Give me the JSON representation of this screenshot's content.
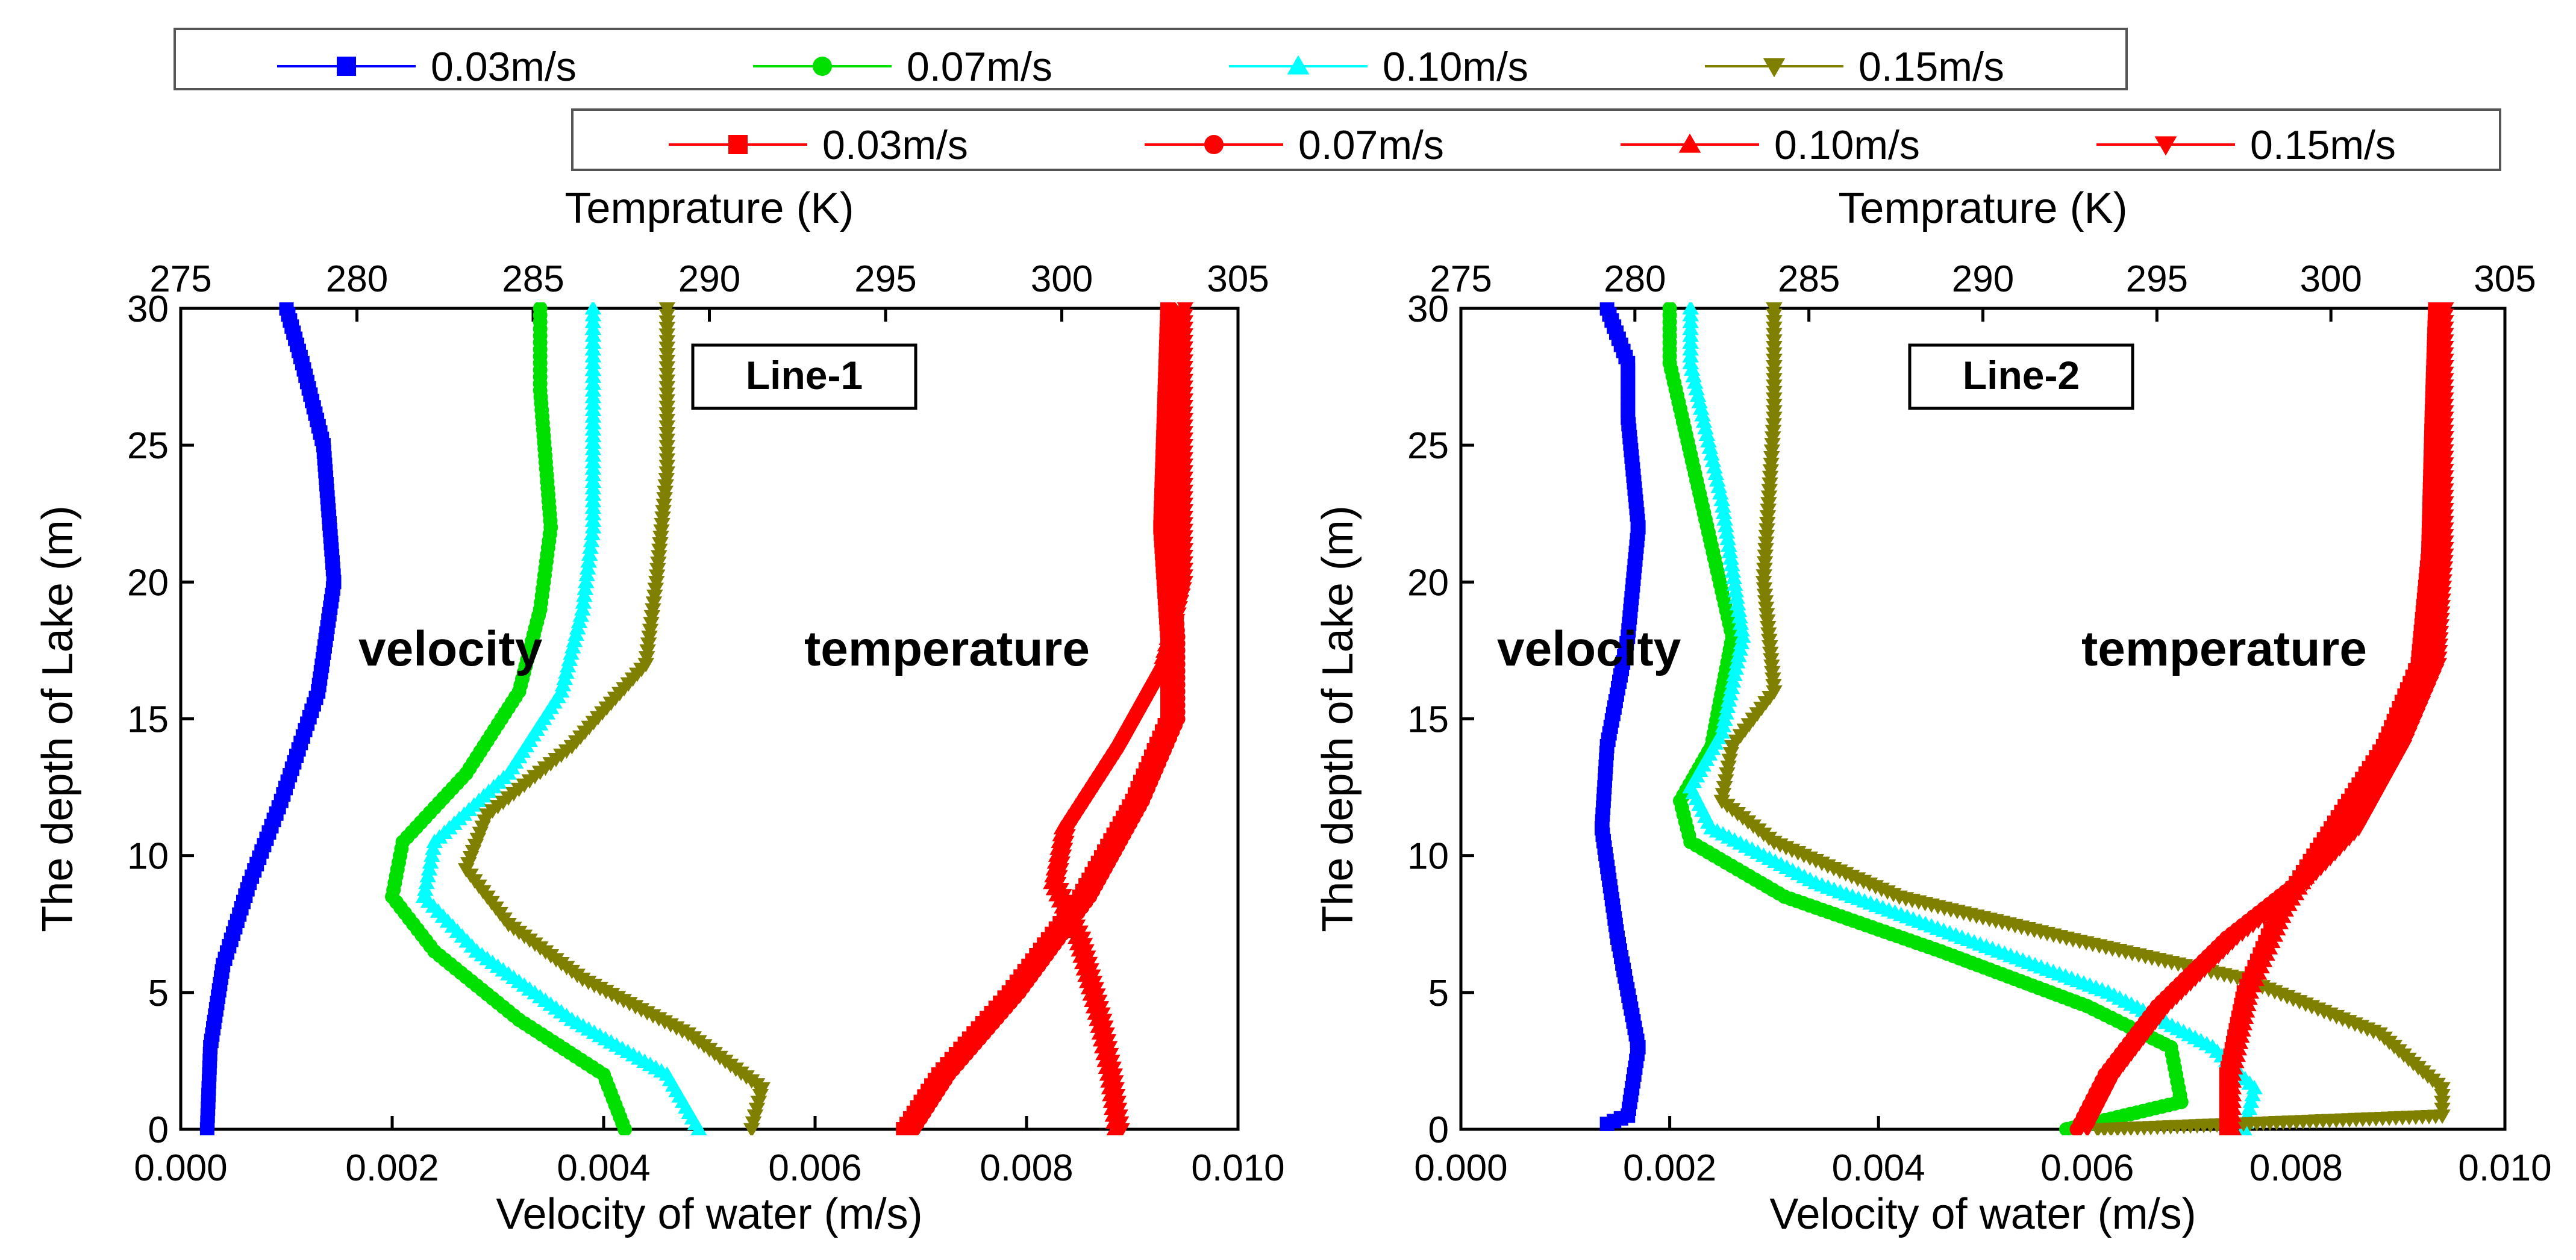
{
  "legends": {
    "velocity_legend": [
      {
        "label": "0.03m/s",
        "color": "#0000ff",
        "marker": "square"
      },
      {
        "label": "0.07m/s",
        "color": "#00e000",
        "marker": "circle"
      },
      {
        "label": "0.10m/s",
        "color": "#00ffff",
        "marker": "triangle-up"
      },
      {
        "label": "0.15m/s",
        "color": "#808000",
        "marker": "triangle-down"
      }
    ],
    "temperature_legend": [
      {
        "label": "0.03m/s",
        "color": "#ff0000",
        "marker": "square"
      },
      {
        "label": "0.07m/s",
        "color": "#ff0000",
        "marker": "circle"
      },
      {
        "label": "0.10m/s",
        "color": "#ff0000",
        "marker": "triangle-up"
      },
      {
        "label": "0.15m/s",
        "color": "#ff0000",
        "marker": "triangle-down"
      }
    ]
  },
  "chart_data": [
    {
      "type": "line",
      "panel_label": "Line-1",
      "xlabel": "Velocity of water (m/s)",
      "ylabel": "The depth of Lake (m)",
      "x2label": "Temprature (K)",
      "xlim": [
        0.0,
        0.01
      ],
      "x2lim": [
        275,
        305
      ],
      "ylim": [
        0,
        30
      ],
      "xticks": [
        "0.000",
        "0.002",
        "0.004",
        "0.006",
        "0.008",
        "0.010"
      ],
      "x2ticks": [
        "275",
        "280",
        "285",
        "290",
        "295",
        "300",
        "305"
      ],
      "yticks": [
        "0",
        "5",
        "10",
        "15",
        "20",
        "25",
        "30"
      ],
      "annotations": [
        "velocity",
        "temperature"
      ],
      "velocity_series": [
        {
          "name": "0.03m/s",
          "color": "#0000ff",
          "marker": "square",
          "points": [
            [
              0.00025,
              0
            ],
            [
              0.00028,
              3
            ],
            [
              0.0004,
              6
            ],
            [
              0.00065,
              9
            ],
            [
              0.00095,
              12
            ],
            [
              0.0013,
              16
            ],
            [
              0.00145,
              20
            ],
            [
              0.00135,
              25
            ],
            [
              0.00115,
              28
            ],
            [
              0.001,
              30
            ]
          ]
        },
        {
          "name": "0.07m/s",
          "color": "#00e000",
          "marker": "circle",
          "points": [
            [
              0.0042,
              0
            ],
            [
              0.004,
              2
            ],
            [
              0.0032,
              4
            ],
            [
              0.0024,
              6.5
            ],
            [
              0.002,
              8.5
            ],
            [
              0.0021,
              10.5
            ],
            [
              0.0027,
              13
            ],
            [
              0.0032,
              16
            ],
            [
              0.0034,
              19
            ],
            [
              0.0035,
              22
            ],
            [
              0.0034,
              27
            ],
            [
              0.0034,
              30
            ]
          ]
        },
        {
          "name": "0.10m/s",
          "color": "#00ffff",
          "marker": "triangle-up",
          "points": [
            [
              0.0049,
              0
            ],
            [
              0.0046,
              2
            ],
            [
              0.0037,
              4
            ],
            [
              0.0028,
              6.5
            ],
            [
              0.0023,
              8.5
            ],
            [
              0.0024,
              10.5
            ],
            [
              0.0031,
              13
            ],
            [
              0.0036,
              16
            ],
            [
              0.0038,
              19
            ],
            [
              0.0039,
              22
            ],
            [
              0.0039,
              27
            ],
            [
              0.0039,
              30
            ]
          ]
        },
        {
          "name": "0.15m/s",
          "color": "#808000",
          "marker": "triangle-down",
          "points": [
            [
              0.0054,
              0
            ],
            [
              0.0055,
              1.5
            ],
            [
              0.0048,
              3.5
            ],
            [
              0.0038,
              5.5
            ],
            [
              0.0031,
              7.5
            ],
            [
              0.0027,
              9.5
            ],
            [
              0.0029,
              11.5
            ],
            [
              0.0037,
              14
            ],
            [
              0.0044,
              17
            ],
            [
              0.0045,
              20
            ],
            [
              0.0046,
              24
            ],
            [
              0.0046,
              30
            ]
          ]
        }
      ],
      "temperature_series": [
        {
          "name": "0.03m/s",
          "color": "#ff0000",
          "marker": "square",
          "points": [
            [
              295.5,
              0
            ],
            [
              296.5,
              2
            ],
            [
              298.5,
              5
            ],
            [
              300.5,
              8.5
            ],
            [
              302.0,
              12
            ],
            [
              303.0,
              15
            ],
            [
              303.0,
              18
            ],
            [
              302.8,
              22
            ],
            [
              302.9,
              26
            ],
            [
              303.0,
              30
            ]
          ]
        },
        {
          "name": "0.07m/s",
          "color": "#ff0000",
          "marker": "circle",
          "points": [
            [
              295.8,
              0
            ],
            [
              296.8,
              2
            ],
            [
              298.8,
              5
            ],
            [
              300.8,
              8.5
            ],
            [
              302.3,
              12
            ],
            [
              303.3,
              15
            ],
            [
              303.3,
              18
            ],
            [
              303.1,
              22
            ],
            [
              303.1,
              26
            ],
            [
              303.1,
              30
            ]
          ]
        },
        {
          "name": "0.10m/s",
          "color": "#ff0000",
          "marker": "triangle-up",
          "points": [
            [
              301.5,
              0
            ],
            [
              301.3,
              2
            ],
            [
              301.0,
              4
            ],
            [
              300.4,
              7
            ],
            [
              299.7,
              9
            ],
            [
              300.0,
              11
            ],
            [
              301.5,
              14
            ],
            [
              302.8,
              17
            ],
            [
              303.4,
              20
            ],
            [
              303.4,
              25
            ],
            [
              303.4,
              30
            ]
          ]
        },
        {
          "name": "0.15m/s",
          "color": "#ff0000",
          "marker": "triangle-down",
          "points": [
            [
              301.7,
              0
            ],
            [
              301.5,
              2
            ],
            [
              301.2,
              4
            ],
            [
              300.6,
              7
            ],
            [
              299.9,
              9
            ],
            [
              300.2,
              11
            ],
            [
              301.7,
              14
            ],
            [
              303.0,
              17
            ],
            [
              303.5,
              20
            ],
            [
              303.5,
              25
            ],
            [
              303.5,
              30
            ]
          ]
        }
      ]
    },
    {
      "type": "line",
      "panel_label": "Line-2",
      "xlabel": "Velocity of water (m/s)",
      "ylabel": "The depth of Lake (m)",
      "x2label": "Temprature (K)",
      "xlim": [
        0.0,
        0.01
      ],
      "x2lim": [
        275,
        305
      ],
      "ylim": [
        0,
        30
      ],
      "xticks": [
        "0.000",
        "0.002",
        "0.004",
        "0.006",
        "0.008",
        "0.010"
      ],
      "x2ticks": [
        "275",
        "280",
        "285",
        "290",
        "295",
        "300",
        "305"
      ],
      "yticks": [
        "0",
        "5",
        "10",
        "15",
        "20",
        "25",
        "30"
      ],
      "annotations": [
        "velocity",
        "temperature"
      ],
      "velocity_series": [
        {
          "name": "0.03m/s",
          "color": "#0000ff",
          "marker": "square",
          "points": [
            [
              0.0014,
              0.2
            ],
            [
              0.0016,
              0.5
            ],
            [
              0.0017,
              3
            ],
            [
              0.0015,
              7
            ],
            [
              0.00135,
              11
            ],
            [
              0.0014,
              14
            ],
            [
              0.0016,
              18
            ],
            [
              0.0017,
              22
            ],
            [
              0.0016,
              26
            ],
            [
              0.0016,
              28
            ],
            [
              0.0014,
              30
            ]
          ]
        },
        {
          "name": "0.07m/s",
          "color": "#00e000",
          "marker": "circle",
          "points": [
            [
              0.0058,
              0
            ],
            [
              0.0069,
              1
            ],
            [
              0.0068,
              3
            ],
            [
              0.006,
              4.5
            ],
            [
              0.0046,
              6.5
            ],
            [
              0.0031,
              8.5
            ],
            [
              0.0022,
              10.5
            ],
            [
              0.0021,
              12
            ],
            [
              0.0024,
              14
            ],
            [
              0.0026,
              18
            ],
            [
              0.0023,
              23
            ],
            [
              0.002,
              28
            ],
            [
              0.002,
              30
            ]
          ]
        },
        {
          "name": "0.10m/s",
          "color": "#00ffff",
          "marker": "triangle-up",
          "points": [
            [
              0.0075,
              0
            ],
            [
              0.0076,
              1.5
            ],
            [
              0.0072,
              3
            ],
            [
              0.0062,
              5
            ],
            [
              0.0048,
              7
            ],
            [
              0.0034,
              9
            ],
            [
              0.0024,
              11
            ],
            [
              0.0022,
              12.5
            ],
            [
              0.0025,
              14.5
            ],
            [
              0.0027,
              18
            ],
            [
              0.0025,
              23
            ],
            [
              0.0022,
              28
            ],
            [
              0.0022,
              30
            ]
          ]
        },
        {
          "name": "0.15m/s",
          "color": "#808000",
          "marker": "triangle-down",
          "points": [
            [
              0.0061,
              0
            ],
            [
              0.0094,
              0.5
            ],
            [
              0.0094,
              1.5
            ],
            [
              0.0088,
              3.5
            ],
            [
              0.0075,
              5.5
            ],
            [
              0.0058,
              7
            ],
            [
              0.0042,
              8.5
            ],
            [
              0.003,
              10.5
            ],
            [
              0.0025,
              12
            ],
            [
              0.0026,
              14
            ],
            [
              0.003,
              16
            ],
            [
              0.0029,
              20
            ],
            [
              0.003,
              26
            ],
            [
              0.003,
              30
            ]
          ]
        }
      ],
      "temperature_series": [
        {
          "name": "0.03m/s",
          "color": "#ff0000",
          "marker": "square",
          "points": [
            [
              297.0,
              0
            ],
            [
              297.0,
              2
            ],
            [
              297.5,
              5
            ],
            [
              298.5,
              8
            ],
            [
              300.0,
              11
            ],
            [
              301.5,
              14
            ],
            [
              302.5,
              17
            ],
            [
              302.8,
              21
            ],
            [
              302.9,
              26
            ],
            [
              303.0,
              30
            ]
          ]
        },
        {
          "name": "0.07m/s",
          "color": "#ff0000",
          "marker": "circle",
          "points": [
            [
              292.7,
              0
            ],
            [
              293.5,
              2
            ],
            [
              295.0,
              4.5
            ],
            [
              297.0,
              7
            ],
            [
              299.0,
              9
            ],
            [
              300.5,
              11
            ],
            [
              301.8,
              14
            ],
            [
              302.8,
              17
            ],
            [
              303.1,
              21
            ],
            [
              303.1,
              26
            ],
            [
              303.1,
              30
            ]
          ]
        },
        {
          "name": "0.10m/s",
          "color": "#ff0000",
          "marker": "triangle-up",
          "points": [
            [
              297.2,
              0
            ],
            [
              297.2,
              2
            ],
            [
              297.7,
              5
            ],
            [
              298.7,
              8
            ],
            [
              300.2,
              11
            ],
            [
              301.7,
              14
            ],
            [
              302.7,
              17
            ],
            [
              303.0,
              21
            ],
            [
              303.0,
              26
            ],
            [
              303.1,
              30
            ]
          ]
        },
        {
          "name": "0.15m/s",
          "color": "#ff0000",
          "marker": "triangle-down",
          "points": [
            [
              293.0,
              0
            ],
            [
              293.8,
              2
            ],
            [
              295.3,
              4.5
            ],
            [
              297.3,
              7
            ],
            [
              299.3,
              9
            ],
            [
              300.8,
              11
            ],
            [
              302.1,
              14
            ],
            [
              303.1,
              17
            ],
            [
              303.3,
              21
            ],
            [
              303.3,
              26
            ],
            [
              303.3,
              30
            ]
          ]
        }
      ]
    }
  ]
}
